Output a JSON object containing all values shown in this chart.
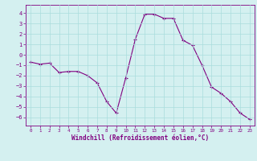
{
  "x": [
    0,
    1,
    2,
    3,
    4,
    5,
    6,
    7,
    8,
    9,
    10,
    11,
    12,
    13,
    14,
    15,
    16,
    17,
    18,
    19,
    20,
    21,
    22,
    23
  ],
  "y": [
    -0.7,
    -0.9,
    -0.8,
    -1.7,
    -1.6,
    -1.6,
    -2.0,
    -2.7,
    -4.5,
    -5.6,
    -2.2,
    1.5,
    3.9,
    3.9,
    3.5,
    3.5,
    1.4,
    0.9,
    -1.0,
    -3.1,
    -3.7,
    -4.5,
    -5.6,
    -6.2
  ],
  "line_color": "#800080",
  "marker": "+",
  "marker_color": "#800080",
  "bg_color": "#d4f0f0",
  "grid_color": "#aadddd",
  "axis_color": "#800080",
  "xlabel": "Windchill (Refroidissement éolien,°C)",
  "xlim": [
    -0.5,
    23.5
  ],
  "ylim": [
    -6.8,
    4.8
  ],
  "yticks": [
    -6,
    -5,
    -4,
    -3,
    -2,
    -1,
    0,
    1,
    2,
    3,
    4
  ],
  "xticks": [
    0,
    1,
    2,
    3,
    4,
    5,
    6,
    7,
    8,
    9,
    10,
    11,
    12,
    13,
    14,
    15,
    16,
    17,
    18,
    19,
    20,
    21,
    22,
    23
  ],
  "grid_major_x": true,
  "grid_major_y": true
}
